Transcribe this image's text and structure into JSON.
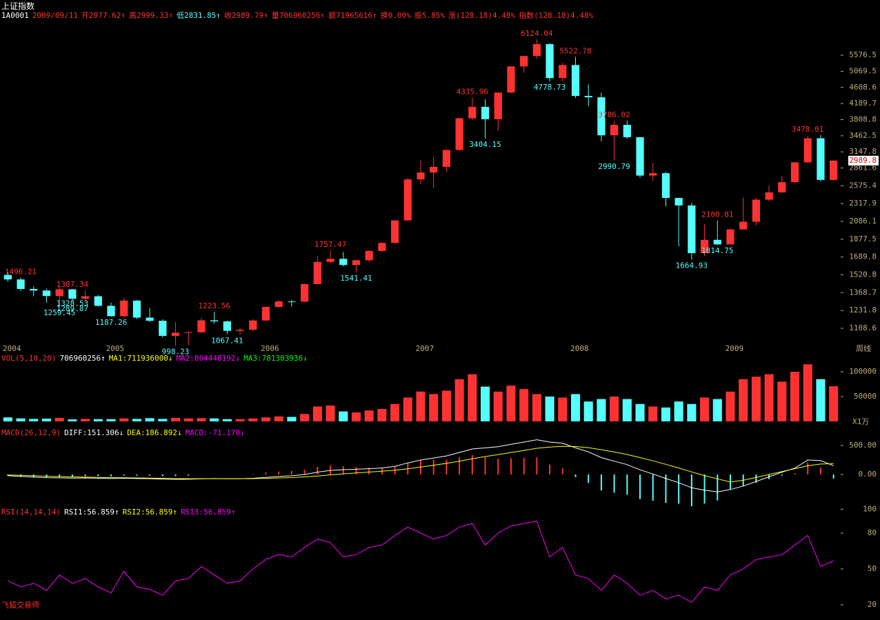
{
  "header": {
    "title": "上证指数",
    "items": [
      "1A0001",
      "2009/09/11",
      "开2877.62↑",
      "高2999.33↑",
      "低2831.85↑",
      "收2989.79↑",
      "量706960256↑",
      "额71965616↑",
      "换0.00%",
      "振5.85%",
      "涨(128.18)4.48%",
      "指数(128.18)4.48%"
    ]
  },
  "footer": "飞狐交易师",
  "chart_data": [
    {
      "type": "candlestick",
      "log_scale": true,
      "period_label": "周线",
      "up_color": "#ff3232",
      "down_color": "#54ffff",
      "categories": [
        "2004",
        null,
        null,
        null,
        null,
        null,
        null,
        null,
        "2005",
        null,
        null,
        null,
        null,
        null,
        null,
        null,
        null,
        null,
        null,
        null,
        "2006",
        null,
        null,
        null,
        null,
        null,
        null,
        null,
        null,
        null,
        null,
        null,
        "2007",
        null,
        null,
        null,
        null,
        null,
        null,
        null,
        null,
        null,
        null,
        null,
        "2008",
        null,
        null,
        null,
        null,
        null,
        null,
        null,
        null,
        null,
        null,
        null,
        "2009",
        null,
        null,
        null,
        null,
        null,
        null,
        null,
        null
      ],
      "open": [
        1520,
        1480,
        1399,
        1386,
        1342,
        1396,
        1320,
        1340,
        1266,
        1191,
        1306,
        1181,
        1159,
        1060,
        1080,
        1083,
        1162,
        1155,
        1092,
        1099,
        1161,
        1258,
        1299,
        1298,
        1440,
        1642,
        1672,
        1612,
        1658,
        1752,
        1837,
        2099,
        2675,
        2786,
        2881,
        3183,
        3841,
        4109,
        3820,
        4471,
        5218,
        5552,
        5954,
        4871,
        5261,
        4383,
        4348,
        3472,
        3693,
        3433,
        2736,
        2775,
        2397,
        2293,
        1729,
        1871,
        1821,
        1990,
        2082,
        2373,
        2477,
        2632,
        2959,
        3412,
        2667
      ],
      "high": [
        1545,
        1496,
        1420,
        1400,
        1420,
        1400,
        1387,
        1350,
        1290,
        1328,
        1310,
        1250,
        1170,
        1150,
        1090,
        1180,
        1223,
        1160,
        1110,
        1170,
        1260,
        1310,
        1310,
        1445,
        1700,
        1757,
        1740,
        1665,
        1760,
        1845,
        2100,
        2698,
        2995,
        3050,
        3200,
        3850,
        4335,
        4300,
        4475,
        5220,
        5560,
        6124,
        5990,
        5330,
        5522,
        4695,
        4470,
        3786,
        3786,
        3440,
        2950,
        2800,
        2400,
        2330,
        2050,
        2100,
        2000,
        2402,
        2400,
        2580,
        2730,
        2960,
        3454,
        3478,
        2999
      ],
      "low": [
        1460,
        1380,
        1340,
        1290,
        1259,
        1300,
        1300,
        1259,
        1187,
        1180,
        1170,
        1150,
        1050,
        998,
        1004,
        1080,
        1140,
        1070,
        1067,
        1090,
        1160,
        1250,
        1260,
        1295,
        1435,
        1630,
        1600,
        1541,
        1640,
        1740,
        1830,
        2090,
        2600,
        2540,
        2800,
        3170,
        3800,
        3404,
        3560,
        4460,
        5030,
        5460,
        4778,
        4780,
        4330,
        4120,
        3350,
        2990,
        3400,
        2700,
        2650,
        2280,
        1800,
        1664,
        1700,
        1814,
        1844,
        1990,
        2037,
        2350,
        2470,
        2620,
        2950,
        2640,
        2650
      ],
      "close": [
        1480,
        1399,
        1386,
        1342,
        1396,
        1320,
        1340,
        1266,
        1191,
        1306,
        1181,
        1159,
        1060,
        1080,
        1083,
        1162,
        1155,
        1092,
        1099,
        1161,
        1258,
        1299,
        1298,
        1440,
        1642,
        1672,
        1612,
        1658,
        1752,
        1837,
        2099,
        2675,
        2786,
        2881,
        3183,
        3841,
        4109,
        3820,
        4471,
        5218,
        5552,
        5954,
        4871,
        5261,
        4383,
        4348,
        3472,
        3693,
        3433,
        2736,
        2775,
        2397,
        2293,
        1729,
        1871,
        1821,
        1990,
        2082,
        2373,
        2477,
        2632,
        2959,
        3412,
        2667,
        2989.79
      ],
      "ylim": [
        1026,
        7067
      ],
      "yticks": [
        1108.6,
        1231.8,
        1368.7,
        1520.8,
        1689.8,
        1877.5,
        2086.1,
        2317.9,
        2575.4,
        2861.6,
        3147.8,
        3462.5,
        3808.8,
        4189.7,
        4608.6,
        5069.5,
        5576.5
      ],
      "annotations": [
        1496.21,
        1259.45,
        1289.87,
        1387.34,
        1328.53,
        1187.26,
        998.23,
        1223.56,
        1067.41,
        1757.47,
        1541.41,
        4335.96,
        3404.15,
        6124.04,
        4778.73,
        5522.78,
        3786.02,
        2990.79,
        1664.93,
        2100.81,
        1814.75,
        3478.01
      ],
      "last_price": 2989.8
    },
    {
      "type": "bar",
      "legend": [
        "VOL(5,10,20)",
        "706960256↑",
        "MA1:711936000↓",
        "MA2:864448192↓",
        "MA3:781303936↓"
      ],
      "unit_label": "X1万",
      "values": [
        8000,
        6000,
        5000,
        5500,
        7000,
        4000,
        5000,
        4500,
        4500,
        6000,
        5000,
        6500,
        5000,
        7000,
        6000,
        6500,
        6000,
        4500,
        4500,
        6000,
        8000,
        10000,
        9000,
        15000,
        30000,
        32000,
        20000,
        18000,
        22000,
        25000,
        35000,
        48000,
        60000,
        55000,
        62000,
        85000,
        95000,
        70000,
        60000,
        72000,
        65000,
        55000,
        50000,
        48000,
        55000,
        40000,
        45000,
        50000,
        45000,
        35000,
        30000,
        28000,
        40000,
        35000,
        48000,
        45000,
        60000,
        85000,
        90000,
        95000,
        80000,
        100000,
        115000,
        85000,
        70696
      ],
      "ylim": [
        0,
        116667
      ],
      "yticks": [
        50000,
        100000
      ]
    },
    {
      "type": "macd",
      "legend": [
        "MACD(26,12,9)",
        "DIFF:151.306↓",
        "DEA:186.892↓",
        "MACD:-71.170↓"
      ],
      "series": [
        {
          "color": "#ffffff",
          "values": [
            -20,
            -35,
            -45,
            -55,
            -58,
            -62,
            -60,
            -64,
            -70,
            -66,
            -70,
            -72,
            -80,
            -84,
            -82,
            -74,
            -70,
            -72,
            -72,
            -66,
            -50,
            -34,
            -22,
            0,
            40,
            70,
            82,
            90,
            100,
            112,
            140,
            200,
            250,
            285,
            320,
            380,
            440,
            460,
            480,
            520,
            560,
            600,
            560,
            540,
            460,
            390,
            290,
            230,
            170,
            80,
            10,
            -70,
            -140,
            -230,
            -270,
            -300,
            -260,
            -200,
            -120,
            -40,
            40,
            110,
            250,
            240,
            151.306
          ]
        },
        {
          "color": "#ffff00",
          "values": [
            -10,
            -15,
            -22,
            -30,
            -36,
            -42,
            -46,
            -50,
            -54,
            -57,
            -60,
            -62,
            -66,
            -70,
            -72,
            -73,
            -72,
            -72,
            -72,
            -71,
            -67,
            -60,
            -53,
            -42,
            -26,
            -7,
            11,
            27,
            42,
            56,
            73,
            98,
            129,
            160,
            192,
            230,
            272,
            310,
            344,
            380,
            416,
            453,
            474,
            487,
            482,
            463,
            428,
            388,
            345,
            292,
            236,
            175,
            112,
            44,
            -19,
            -75,
            -130,
            -100,
            -50,
            0,
            50,
            100,
            150,
            180,
            186.892
          ]
        }
      ],
      "histogram": [
        -20,
        -40,
        -46,
        -50,
        -44,
        -40,
        -28,
        -28,
        -32,
        -18,
        -20,
        -20,
        -28,
        -28,
        -20,
        -2,
        4,
        0,
        0,
        10,
        34,
        52,
        62,
        84,
        132,
        154,
        142,
        126,
        116,
        112,
        134,
        204,
        242,
        250,
        256,
        300,
        336,
        300,
        272,
        280,
        288,
        294,
        172,
        106,
        -44,
        -146,
        -276,
        -316,
        -350,
        -424,
        -452,
        -490,
        -504,
        -548,
        -502,
        -450,
        -260,
        -200,
        -140,
        -80,
        -20,
        20,
        200,
        120,
        -71.17
      ],
      "ylim": [
        -619,
        631
      ],
      "yticks": [
        {
          "value": 0,
          "label": "0.00"
        },
        {
          "value": 500,
          "label": "500.00"
        }
      ]
    },
    {
      "type": "line",
      "legend": [
        "RSI(14,14,14)",
        "RSI1:56.859↑",
        "RSI2:56.859↑",
        "RSI3:56.859↑"
      ],
      "series": [
        {
          "color": "#ff00ff",
          "values": [
            40,
            35,
            38,
            32,
            45,
            38,
            42,
            35,
            30,
            48,
            35,
            33,
            28,
            40,
            42,
            52,
            45,
            38,
            40,
            50,
            58,
            62,
            60,
            68,
            75,
            72,
            60,
            62,
            68,
            70,
            78,
            85,
            80,
            75,
            78,
            85,
            88,
            70,
            80,
            86,
            88,
            90,
            60,
            68,
            45,
            42,
            32,
            45,
            38,
            28,
            32,
            25,
            28,
            22,
            35,
            32,
            45,
            50,
            58,
            60,
            62,
            70,
            78,
            52,
            56.859
          ]
        }
      ],
      "ylim": [
        12.5,
        101.9
      ],
      "yticks": [
        20,
        50,
        80,
        100
      ]
    }
  ]
}
